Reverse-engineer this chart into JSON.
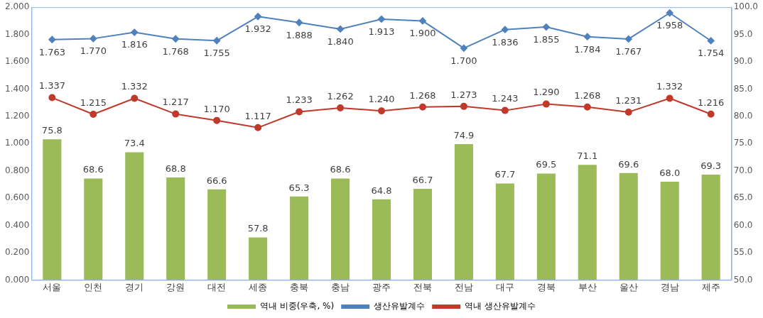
{
  "chart_data": {
    "type": "bar",
    "categories": [
      "서울",
      "인천",
      "경기",
      "강원",
      "대전",
      "세종",
      "충북",
      "충남",
      "광주",
      "전북",
      "전남",
      "대구",
      "경북",
      "부산",
      "울산",
      "경남",
      "제주"
    ],
    "series": [
      {
        "name": "역내 비중(우축, %)",
        "axis": "y2",
        "color": "#9bbb59",
        "values": [
          75.8,
          68.6,
          73.4,
          68.8,
          66.6,
          57.8,
          65.3,
          68.6,
          64.8,
          66.7,
          74.9,
          67.7,
          69.5,
          71.1,
          69.6,
          68.0,
          69.3
        ],
        "value_labels": [
          "75.8",
          "68.6",
          "73.4",
          "68.8",
          "66.6",
          "57.8",
          "65.3",
          "68.6",
          "64.8",
          "66.7",
          "74.9",
          "67.7",
          "69.5",
          "71.1",
          "69.6",
          "68.0",
          "69.3"
        ]
      },
      {
        "name": "생산유발계수",
        "type": "line",
        "marker": "diamond",
        "color": "#4f81bd",
        "values": [
          1.763,
          1.77,
          1.816,
          1.768,
          1.755,
          1.932,
          1.888,
          1.84,
          1.913,
          1.9,
          1.7,
          1.836,
          1.855,
          1.784,
          1.767,
          1.958,
          1.754
        ],
        "value_labels": [
          "1.763",
          "1.770",
          "1.816",
          "1.768",
          "1.755",
          "1.932",
          "1.888",
          "1.840",
          "1.913",
          "1.900",
          "1.700",
          "1.836",
          "1.855",
          "1.784",
          "1.767",
          "1.958",
          "1.754"
        ]
      },
      {
        "name": "역내 생산유발계수",
        "type": "line",
        "marker": "circle",
        "color": "#c0392b",
        "values": [
          1.337,
          1.215,
          1.332,
          1.217,
          1.17,
          1.117,
          1.233,
          1.262,
          1.24,
          1.268,
          1.273,
          1.243,
          1.29,
          1.268,
          1.231,
          1.332,
          1.216
        ],
        "value_labels": [
          "1.337",
          "1.215",
          "1.332",
          "1.217",
          "1.170",
          "1.117",
          "1.233",
          "1.262",
          "1.240",
          "1.268",
          "1.273",
          "1.243",
          "1.290",
          "1.268",
          "1.231",
          "1.332",
          "1.216"
        ]
      }
    ],
    "ylim": [
      0,
      2
    ],
    "yticks": [
      {
        "value": 0,
        "label": "0.000"
      },
      {
        "value": 0.2,
        "label": "0.200"
      },
      {
        "value": 0.4,
        "label": "0.400"
      },
      {
        "value": 0.6,
        "label": "0.600"
      },
      {
        "value": 0.8,
        "label": "0.800"
      },
      {
        "value": 1,
        "label": "1.000"
      },
      {
        "value": 1.2,
        "label": "1.200"
      },
      {
        "value": 1.4,
        "label": "1.400"
      },
      {
        "value": 1.6,
        "label": "1.600"
      },
      {
        "value": 1.8,
        "label": "1.800"
      },
      {
        "value": 2,
        "label": "2.000"
      }
    ],
    "y2lim": [
      50,
      100
    ],
    "y2ticks": [
      {
        "value": 50,
        "label": "50.0"
      },
      {
        "value": 55,
        "label": "55.0"
      },
      {
        "value": 60,
        "label": "60.0"
      },
      {
        "value": 65,
        "label": "65.0"
      },
      {
        "value": 70,
        "label": "70.0"
      },
      {
        "value": 75,
        "label": "75.0"
      },
      {
        "value": 80,
        "label": "80.0"
      },
      {
        "value": 85,
        "label": "85.0"
      },
      {
        "value": 90,
        "label": "90.0"
      },
      {
        "value": 95,
        "label": "95.0"
      },
      {
        "value": 100,
        "label": "100.0"
      }
    ],
    "grid": false,
    "legend": "bottom",
    "line_style": "solid"
  }
}
